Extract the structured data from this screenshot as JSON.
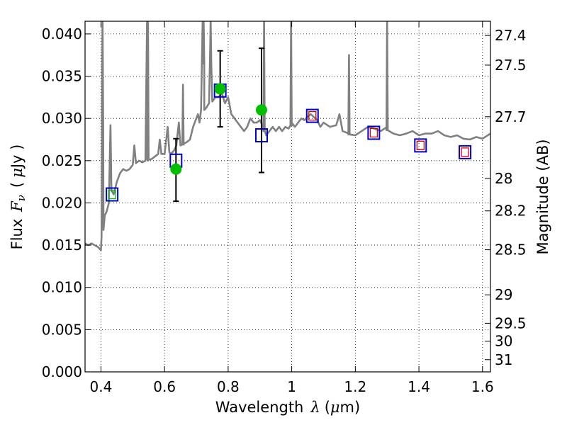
{
  "chart_data": {
    "type": "scatter",
    "title": "",
    "xlabel_parts": [
      "Wavelength",
      "λ",
      "(",
      "μ",
      "m)"
    ],
    "ylabel_parts": [
      "Flux",
      "F",
      "ν",
      "(",
      "μ",
      "Jy )"
    ],
    "y2label": "Magnitude (AB)",
    "xlim": [
      0.35,
      1.625
    ],
    "ylim": [
      0.0,
      0.0415
    ],
    "grid": true,
    "x_ticks": [
      0.4,
      0.6,
      0.8,
      1.0,
      1.2,
      1.4,
      1.6
    ],
    "x_tick_labels": [
      "0.4",
      "0.6",
      "0.8",
      "1",
      "1.2",
      "1.4",
      "1.6"
    ],
    "y_ticks": [
      0.0,
      0.005,
      0.01,
      0.015,
      0.02,
      0.025,
      0.03,
      0.035,
      0.04
    ],
    "y_tick_labels": [
      "0.000",
      "0.005",
      "0.010",
      "0.015",
      "0.020",
      "0.025",
      "0.030",
      "0.035",
      "0.040"
    ],
    "y2_ticks": [
      27.4,
      27.5,
      27.7,
      28,
      28.2,
      28.5,
      29,
      29.5,
      30,
      31
    ],
    "y2_tick_labels": [
      "27.4",
      "27.5",
      "27.7",
      "28",
      "28.2",
      "28.5",
      "29",
      "29.5",
      "30",
      "31"
    ],
    "colors": {
      "spectrum": "#808080",
      "photometry": "#00bf00",
      "model_box": "#0000cc",
      "nir_box": "#dd0000",
      "errorbar": "#000000"
    },
    "spectrum": [
      [
        0.35,
        0.0152
      ],
      [
        0.36,
        0.015
      ],
      [
        0.37,
        0.0152
      ],
      [
        0.38,
        0.015
      ],
      [
        0.39,
        0.0148
      ],
      [
        0.4,
        0.0144
      ],
      [
        0.402,
        0.016
      ],
      [
        0.405,
        0.042
      ],
      [
        0.408,
        0.0168
      ],
      [
        0.412,
        0.0185
      ],
      [
        0.418,
        0.019
      ],
      [
        0.425,
        0.02
      ],
      [
        0.43,
        0.0292
      ],
      [
        0.433,
        0.0215
      ],
      [
        0.44,
        0.021
      ],
      [
        0.45,
        0.0225
      ],
      [
        0.46,
        0.0235
      ],
      [
        0.47,
        0.024
      ],
      [
        0.48,
        0.0238
      ],
      [
        0.49,
        0.024
      ],
      [
        0.5,
        0.0245
      ],
      [
        0.505,
        0.0268
      ],
      [
        0.51,
        0.0247
      ],
      [
        0.52,
        0.025
      ],
      [
        0.53,
        0.0248
      ],
      [
        0.54,
        0.025
      ],
      [
        0.545,
        0.042
      ],
      [
        0.548,
        0.025
      ],
      [
        0.56,
        0.0252
      ],
      [
        0.57,
        0.0255
      ],
      [
        0.58,
        0.0258
      ],
      [
        0.585,
        0.0275
      ],
      [
        0.59,
        0.0258
      ],
      [
        0.6,
        0.0258
      ],
      [
        0.61,
        0.029
      ],
      [
        0.615,
        0.026
      ],
      [
        0.62,
        0.0258
      ],
      [
        0.63,
        0.0262
      ],
      [
        0.637,
        0.0268
      ],
      [
        0.645,
        0.0295
      ],
      [
        0.65,
        0.0268
      ],
      [
        0.66,
        0.027
      ],
      [
        0.67,
        0.0272
      ],
      [
        0.68,
        0.0275
      ],
      [
        0.69,
        0.029
      ],
      [
        0.7,
        0.03
      ],
      [
        0.705,
        0.0305
      ],
      [
        0.71,
        0.0295
      ],
      [
        0.715,
        0.031
      ],
      [
        0.72,
        0.042
      ],
      [
        0.725,
        0.031
      ],
      [
        0.73,
        0.0312
      ],
      [
        0.74,
        0.0318
      ],
      [
        0.745,
        0.041
      ],
      [
        0.75,
        0.032
      ],
      [
        0.76,
        0.0325
      ],
      [
        0.77,
        0.0325
      ],
      [
        0.78,
        0.033
      ],
      [
        0.79,
        0.0318
      ],
      [
        0.8,
        0.0325
      ],
      [
        0.81,
        0.0305
      ],
      [
        0.82,
        0.03
      ],
      [
        0.83,
        0.0295
      ],
      [
        0.84,
        0.029
      ],
      [
        0.85,
        0.0285
      ],
      [
        0.86,
        0.029
      ],
      [
        0.87,
        0.03
      ],
      [
        0.88,
        0.0295
      ],
      [
        0.89,
        0.0295
      ],
      [
        0.9,
        0.0298
      ],
      [
        0.91,
        0.029
      ],
      [
        0.92,
        0.028
      ],
      [
        0.93,
        0.0285
      ],
      [
        0.94,
        0.029
      ],
      [
        0.95,
        0.0285
      ],
      [
        0.96,
        0.029
      ],
      [
        0.97,
        0.0285
      ],
      [
        0.98,
        0.029
      ],
      [
        0.99,
        0.0288
      ],
      [
        1.0,
        0.0295
      ],
      [
        1.01,
        0.029
      ],
      [
        1.02,
        0.0295
      ],
      [
        1.03,
        0.03
      ],
      [
        1.04,
        0.0298
      ],
      [
        1.05,
        0.0302
      ],
      [
        1.06,
        0.0305
      ],
      [
        1.08,
        0.0298
      ],
      [
        1.09,
        0.029
      ],
      [
        1.1,
        0.0295
      ],
      [
        1.12,
        0.029
      ],
      [
        1.14,
        0.0292
      ],
      [
        1.15,
        0.0305
      ],
      [
        1.16,
        0.0285
      ],
      [
        1.18,
        0.0282
      ],
      [
        1.2,
        0.028
      ],
      [
        1.22,
        0.0285
      ],
      [
        1.24,
        0.029
      ],
      [
        1.26,
        0.0288
      ],
      [
        1.28,
        0.0285
      ],
      [
        1.3,
        0.029
      ],
      [
        1.32,
        0.0282
      ],
      [
        1.34,
        0.028
      ],
      [
        1.36,
        0.0282
      ],
      [
        1.38,
        0.0285
      ],
      [
        1.4,
        0.028
      ],
      [
        1.42,
        0.0282
      ],
      [
        1.44,
        0.0282
      ],
      [
        1.46,
        0.0285
      ],
      [
        1.48,
        0.028
      ],
      [
        1.5,
        0.0278
      ],
      [
        1.52,
        0.028
      ],
      [
        1.54,
        0.0276
      ],
      [
        1.56,
        0.0275
      ],
      [
        1.58,
        0.0278
      ],
      [
        1.6,
        0.0276
      ],
      [
        1.625,
        0.0282
      ]
    ],
    "spectrum_spikes": [
      {
        "x": 0.405,
        "y": 0.042
      },
      {
        "x": 0.548,
        "y": 0.042
      },
      {
        "x": 0.658,
        "y": 0.034
      },
      {
        "x": 0.723,
        "y": 0.042
      },
      {
        "x": 0.745,
        "y": 0.042
      },
      {
        "x": 0.913,
        "y": 0.042
      },
      {
        "x": 0.998,
        "y": 0.042
      },
      {
        "x": 1.18,
        "y": 0.0375
      },
      {
        "x": 1.3,
        "y": 0.042
      }
    ],
    "photometry": [
      {
        "x": 0.636,
        "y": 0.024,
        "yerr": [
          0.0202,
          0.0276
        ]
      },
      {
        "x": 0.775,
        "y": 0.0335,
        "yerr": [
          0.029,
          0.038
        ]
      },
      {
        "x": 0.905,
        "y": 0.031,
        "yerr": [
          0.0236,
          0.0383
        ]
      }
    ],
    "model_boxes": [
      {
        "x": 0.435,
        "y": 0.021
      },
      {
        "x": 0.636,
        "y": 0.025
      },
      {
        "x": 0.775,
        "y": 0.0333
      },
      {
        "x": 0.905,
        "y": 0.028
      },
      {
        "x": 1.065,
        "y": 0.0303
      },
      {
        "x": 1.258,
        "y": 0.0283
      },
      {
        "x": 1.405,
        "y": 0.0268
      },
      {
        "x": 1.545,
        "y": 0.026
      }
    ],
    "nir_inner_boxes": [
      {
        "x": 1.065,
        "y": 0.0303
      },
      {
        "x": 1.258,
        "y": 0.0283
      },
      {
        "x": 1.405,
        "y": 0.0268
      },
      {
        "x": 1.545,
        "y": 0.026
      }
    ],
    "inner_green_box": {
      "x": 0.435,
      "y": 0.021
    }
  }
}
